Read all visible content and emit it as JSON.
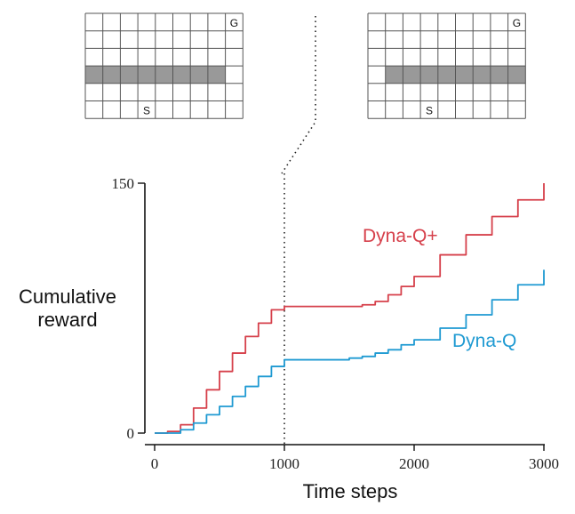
{
  "colors": {
    "dyna_q_plus": "#d6404b",
    "dyna_q": "#1f9ad2",
    "wall": "#999999",
    "grid_line": "#555555",
    "axis": "#111111"
  },
  "mazes": [
    {
      "name": "before",
      "rows": 6,
      "cols": 9,
      "goal": {
        "row": 0,
        "col": 8,
        "label": "G"
      },
      "start": {
        "row": 5,
        "col": 3,
        "label": "S"
      },
      "wall": {
        "row": 3,
        "from_col": 0,
        "to_col": 7
      }
    },
    {
      "name": "after",
      "rows": 6,
      "cols": 9,
      "goal": {
        "row": 0,
        "col": 8,
        "label": "G"
      },
      "start": {
        "row": 5,
        "col": 3,
        "label": "S"
      },
      "wall": {
        "row": 3,
        "from_col": 1,
        "to_col": 8
      }
    }
  ],
  "chart_data": {
    "type": "line",
    "xlabel": "Time steps",
    "ylabel": [
      "Cumulative",
      "reward"
    ],
    "xlim": [
      0,
      3000
    ],
    "ylim": [
      0,
      150
    ],
    "x_ticks": [
      0,
      1000,
      2000,
      3000
    ],
    "y_ticks": [
      0,
      150
    ],
    "grid": false,
    "annotations": [
      {
        "type": "vertical-dotted-line",
        "x": 1000
      }
    ],
    "series": [
      {
        "name": "Dyna-Q+",
        "color": "#d6404b",
        "x": [
          0,
          100,
          200,
          300,
          400,
          500,
          600,
          700,
          800,
          900,
          1000,
          1100,
          1200,
          1300,
          1400,
          1500,
          1600,
          1700,
          1800,
          1900,
          2000,
          2200,
          2400,
          2600,
          2800,
          3000
        ],
        "y": [
          0,
          1,
          5,
          15,
          26,
          37,
          48,
          58,
          66,
          74,
          76,
          76,
          76,
          76,
          76,
          76,
          77,
          79,
          83,
          88,
          94,
          107,
          119,
          130,
          140,
          150
        ]
      },
      {
        "name": "Dyna-Q",
        "color": "#1f9ad2",
        "x": [
          0,
          100,
          200,
          300,
          400,
          500,
          600,
          700,
          800,
          900,
          1000,
          1100,
          1200,
          1300,
          1400,
          1500,
          1600,
          1700,
          1800,
          1900,
          2000,
          2200,
          2400,
          2600,
          2800,
          3000
        ],
        "y": [
          0,
          0,
          2,
          6,
          11,
          16,
          22,
          28,
          34,
          40,
          44,
          44,
          44,
          44,
          44,
          45,
          46,
          48,
          50,
          53,
          56,
          63,
          71,
          80,
          89,
          98
        ]
      }
    ]
  }
}
